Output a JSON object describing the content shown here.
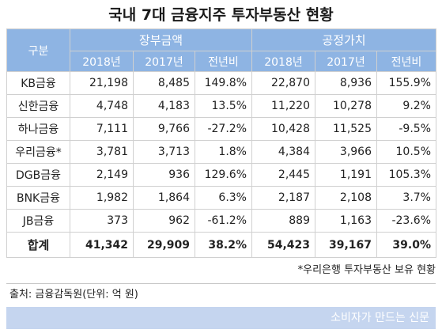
{
  "title": "국내 7대 금융지주 투자부동산 현황",
  "table": {
    "row_header": "구분",
    "groups": [
      "장부금액",
      "공정가치"
    ],
    "sub_headers": [
      "2018년",
      "2017년",
      "전년비",
      "2018년",
      "2017년",
      "전년비"
    ],
    "rows": [
      {
        "name": "KB금융",
        "values": [
          "21,198",
          "8,485",
          "149.8%",
          "22,870",
          "8,936",
          "155.9%"
        ]
      },
      {
        "name": "신한금융",
        "values": [
          "4,748",
          "4,183",
          "13.5%",
          "11,220",
          "10,278",
          "9.2%"
        ]
      },
      {
        "name": "하나금융",
        "values": [
          "7,111",
          "9,766",
          "-27.2%",
          "10,428",
          "11,525",
          "-9.5%"
        ]
      },
      {
        "name": "우리금융*",
        "values": [
          "3,781",
          "3,713",
          "1.8%",
          "4,384",
          "3,966",
          "10.5%"
        ]
      },
      {
        "name": "DGB금융",
        "values": [
          "2,149",
          "936",
          "129.6%",
          "2,445",
          "1,191",
          "105.3%"
        ]
      },
      {
        "name": "BNK금융",
        "values": [
          "1,982",
          "1,864",
          "6.3%",
          "2,187",
          "2,108",
          "3.7%"
        ]
      },
      {
        "name": "JB금융",
        "values": [
          "373",
          "962",
          "-61.2%",
          "889",
          "1,163",
          "-23.6%"
        ]
      }
    ],
    "total": {
      "name": "합계",
      "values": [
        "41,342",
        "29,909",
        "38.2%",
        "54,423",
        "39,167",
        "39.0%"
      ]
    }
  },
  "footnote": "*우리은행 투자부동산 보유 현황",
  "source": "출처: 금융감독원(단위: 억 원)",
  "brand": "소비자가 만드는 신문"
}
